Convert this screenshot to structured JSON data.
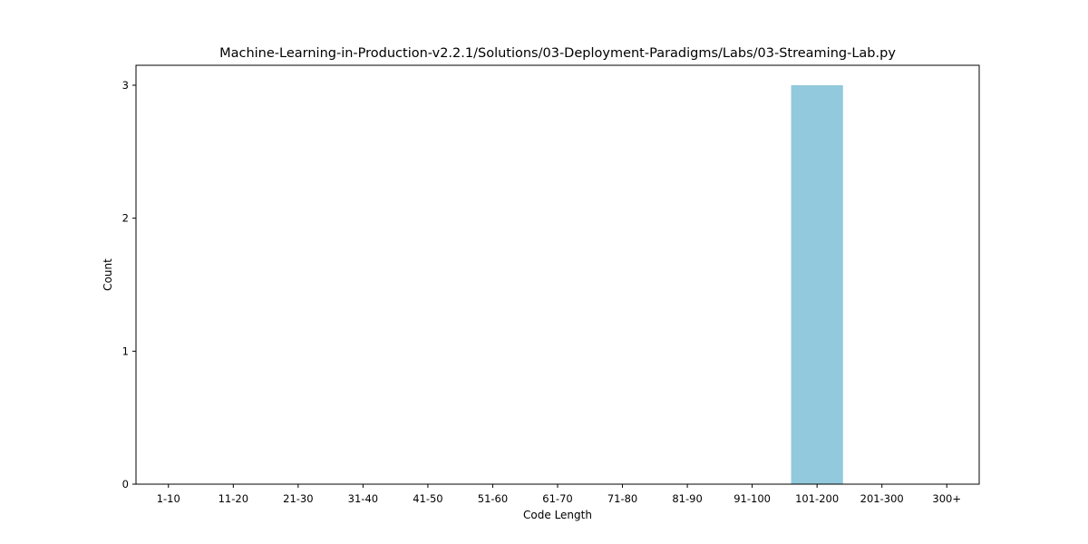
{
  "chart_data": {
    "type": "bar",
    "title": "Machine-Learning-in-Production-v2.2.1/Solutions/03-Deployment-Paradigms/Labs/03-Streaming-Lab.py",
    "xlabel": "Code Length",
    "ylabel": "Count",
    "categories": [
      "1-10",
      "11-20",
      "21-30",
      "31-40",
      "41-50",
      "51-60",
      "61-70",
      "71-80",
      "81-90",
      "91-100",
      "101-200",
      "201-300",
      "300+"
    ],
    "values": [
      0,
      0,
      0,
      0,
      0,
      0,
      0,
      0,
      0,
      0,
      3,
      0,
      0
    ],
    "ylim": [
      0,
      3.15
    ],
    "yticks": [
      0,
      1,
      2,
      3
    ],
    "grid": false,
    "legend": "none",
    "bar_color": "#92C9DC",
    "axis_color": "#000000"
  }
}
